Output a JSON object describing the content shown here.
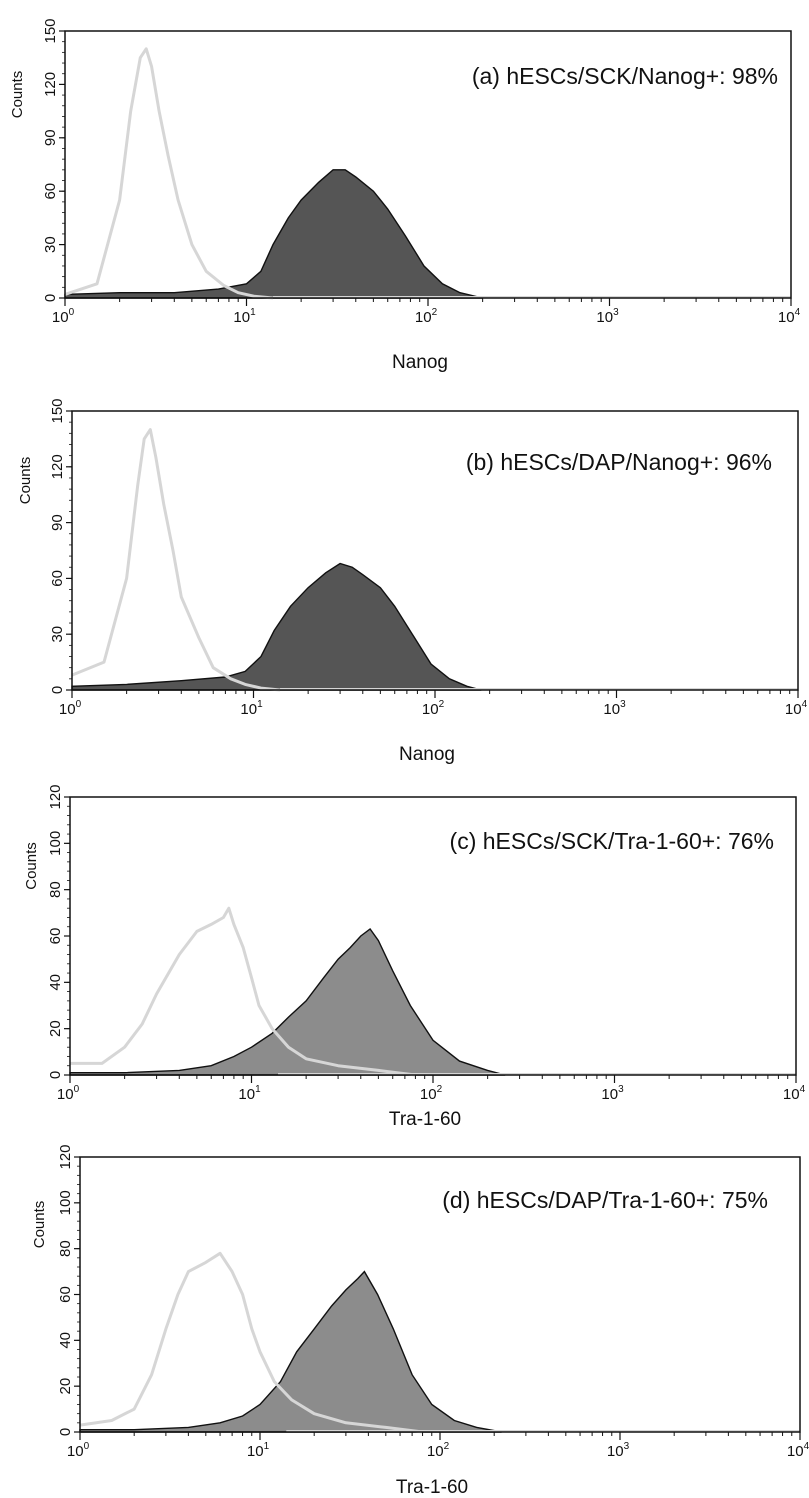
{
  "chart_data": [
    {
      "type": "area",
      "panel": "a",
      "title": "(a) hESCs/SCK/Nanog+: 98%",
      "xlabel": "Nanog",
      "ylabel": "Counts",
      "xscale": "log",
      "xlim": [
        1,
        10000
      ],
      "ylim": [
        0,
        150
      ],
      "x_ticks": [
        "0",
        "1",
        "2",
        "3",
        "4"
      ],
      "y_ticks": [
        0,
        30,
        60,
        90,
        120,
        150
      ],
      "grid": false,
      "fill_color": "#555555",
      "series": [
        {
          "style": "outline",
          "color": "#d6d6d6",
          "x": [
            1.0,
            1.5,
            2.0,
            2.3,
            2.6,
            2.8,
            3.0,
            3.3,
            3.7,
            4.2,
            5.0,
            6.0,
            7.5,
            9.0,
            11.0,
            14.0
          ],
          "y": [
            2,
            8,
            55,
            105,
            135,
            140,
            130,
            105,
            80,
            55,
            30,
            15,
            7,
            3,
            1,
            0
          ]
        },
        {
          "style": "filled",
          "color": "#555555",
          "x": [
            1.0,
            2.0,
            4.0,
            7.0,
            10.0,
            12.0,
            14.0,
            17.0,
            20.0,
            25.0,
            30.0,
            35.0,
            40.0,
            50.0,
            60.0,
            75.0,
            95.0,
            120.0,
            150.0,
            200.0
          ],
          "y": [
            2,
            3,
            3,
            5,
            8,
            15,
            30,
            45,
            55,
            65,
            72,
            72,
            68,
            60,
            50,
            35,
            18,
            8,
            3,
            0
          ]
        }
      ]
    },
    {
      "type": "area",
      "panel": "b",
      "title": "(b) hESCs/DAP/Nanog+: 96%",
      "xlabel": "Nanog",
      "ylabel": "Counts",
      "xscale": "log",
      "xlim": [
        1,
        10000
      ],
      "ylim": [
        0,
        150
      ],
      "x_ticks": [
        "0",
        "1",
        "2",
        "3",
        "4"
      ],
      "y_ticks": [
        0,
        30,
        60,
        90,
        120,
        150
      ],
      "grid": false,
      "fill_color": "#555555",
      "series": [
        {
          "style": "outline",
          "color": "#d6d6d6",
          "x": [
            1.0,
            1.5,
            2.0,
            2.3,
            2.5,
            2.7,
            2.9,
            3.2,
            3.6,
            4.0,
            5.0,
            6.0,
            7.5,
            9.0,
            11.0,
            14.0
          ],
          "y": [
            8,
            15,
            60,
            110,
            135,
            140,
            125,
            100,
            75,
            50,
            28,
            12,
            6,
            3,
            1,
            0
          ]
        },
        {
          "style": "filled",
          "color": "#555555",
          "x": [
            1.0,
            2.0,
            4.0,
            7.0,
            9.0,
            11.0,
            13.0,
            16.0,
            20.0,
            25.0,
            30.0,
            35.0,
            40.0,
            50.0,
            60.0,
            75.0,
            95.0,
            120.0,
            150.0,
            180.0
          ],
          "y": [
            2,
            3,
            5,
            7,
            10,
            18,
            32,
            45,
            55,
            63,
            68,
            66,
            62,
            55,
            45,
            30,
            14,
            6,
            2,
            0
          ]
        }
      ]
    },
    {
      "type": "area",
      "panel": "c",
      "title": "(c) hESCs/SCK/Tra-1-60+: 76%",
      "xlabel": "Tra-1-60",
      "ylabel": "Counts",
      "xscale": "log",
      "xlim": [
        1,
        10000
      ],
      "ylim": [
        0,
        120
      ],
      "x_ticks": [
        "0",
        "1",
        "2",
        "3",
        "4"
      ],
      "y_ticks": [
        0,
        20,
        40,
        60,
        80,
        100,
        120
      ],
      "grid": false,
      "fill_color": "#8c8c8c",
      "series": [
        {
          "style": "outline",
          "color": "#d6d6d6",
          "x": [
            1.0,
            1.5,
            2.0,
            2.5,
            3.0,
            4.0,
            5.0,
            6.0,
            7.0,
            7.5,
            8.0,
            9.0,
            10.0,
            11.0,
            13.0,
            16.0,
            20.0,
            30.0,
            50.0,
            80.0
          ],
          "y": [
            5,
            5,
            12,
            22,
            35,
            52,
            62,
            65,
            68,
            72,
            65,
            55,
            42,
            30,
            20,
            12,
            7,
            4,
            2,
            0
          ]
        },
        {
          "style": "filled",
          "color": "#8c8c8c",
          "x": [
            1.0,
            2.0,
            4.0,
            6.0,
            8.0,
            10.0,
            13.0,
            16.0,
            20.0,
            25.0,
            30.0,
            35.0,
            40.0,
            45.0,
            50.0,
            60.0,
            75.0,
            100.0,
            140.0,
            200.0,
            250.0
          ],
          "y": [
            1,
            1,
            2,
            4,
            8,
            12,
            18,
            25,
            32,
            42,
            50,
            55,
            60,
            63,
            58,
            45,
            30,
            15,
            6,
            2,
            0
          ]
        }
      ]
    },
    {
      "type": "area",
      "panel": "d",
      "title": "(d) hESCs/DAP/Tra-1-60+: 75%",
      "xlabel": "Tra-1-60",
      "ylabel": "Counts",
      "xscale": "log",
      "xlim": [
        1,
        10000
      ],
      "ylim": [
        0,
        120
      ],
      "x_ticks": [
        "0",
        "1",
        "2",
        "3",
        "4"
      ],
      "y_ticks": [
        0,
        20,
        40,
        60,
        80,
        100,
        120
      ],
      "grid": false,
      "fill_color": "#8c8c8c",
      "series": [
        {
          "style": "outline",
          "color": "#d6d6d6",
          "x": [
            1.0,
            1.5,
            2.0,
            2.5,
            3.0,
            3.5,
            4.0,
            5.0,
            6.0,
            7.0,
            8.0,
            9.0,
            10.0,
            12.0,
            15.0,
            20.0,
            30.0,
            50.0,
            80.0
          ],
          "y": [
            3,
            5,
            10,
            25,
            45,
            60,
            70,
            74,
            78,
            70,
            60,
            45,
            35,
            22,
            14,
            8,
            4,
            2,
            0
          ]
        },
        {
          "style": "filled",
          "color": "#8c8c8c",
          "x": [
            1.0,
            2.0,
            4.0,
            6.0,
            8.0,
            10.0,
            13.0,
            16.0,
            20.0,
            25.0,
            30.0,
            35.0,
            38.0,
            45.0,
            55.0,
            70.0,
            90.0,
            120.0,
            160.0,
            220.0
          ],
          "y": [
            1,
            1,
            2,
            4,
            7,
            12,
            22,
            35,
            45,
            55,
            62,
            67,
            70,
            60,
            45,
            25,
            12,
            5,
            2,
            0
          ]
        }
      ]
    }
  ]
}
